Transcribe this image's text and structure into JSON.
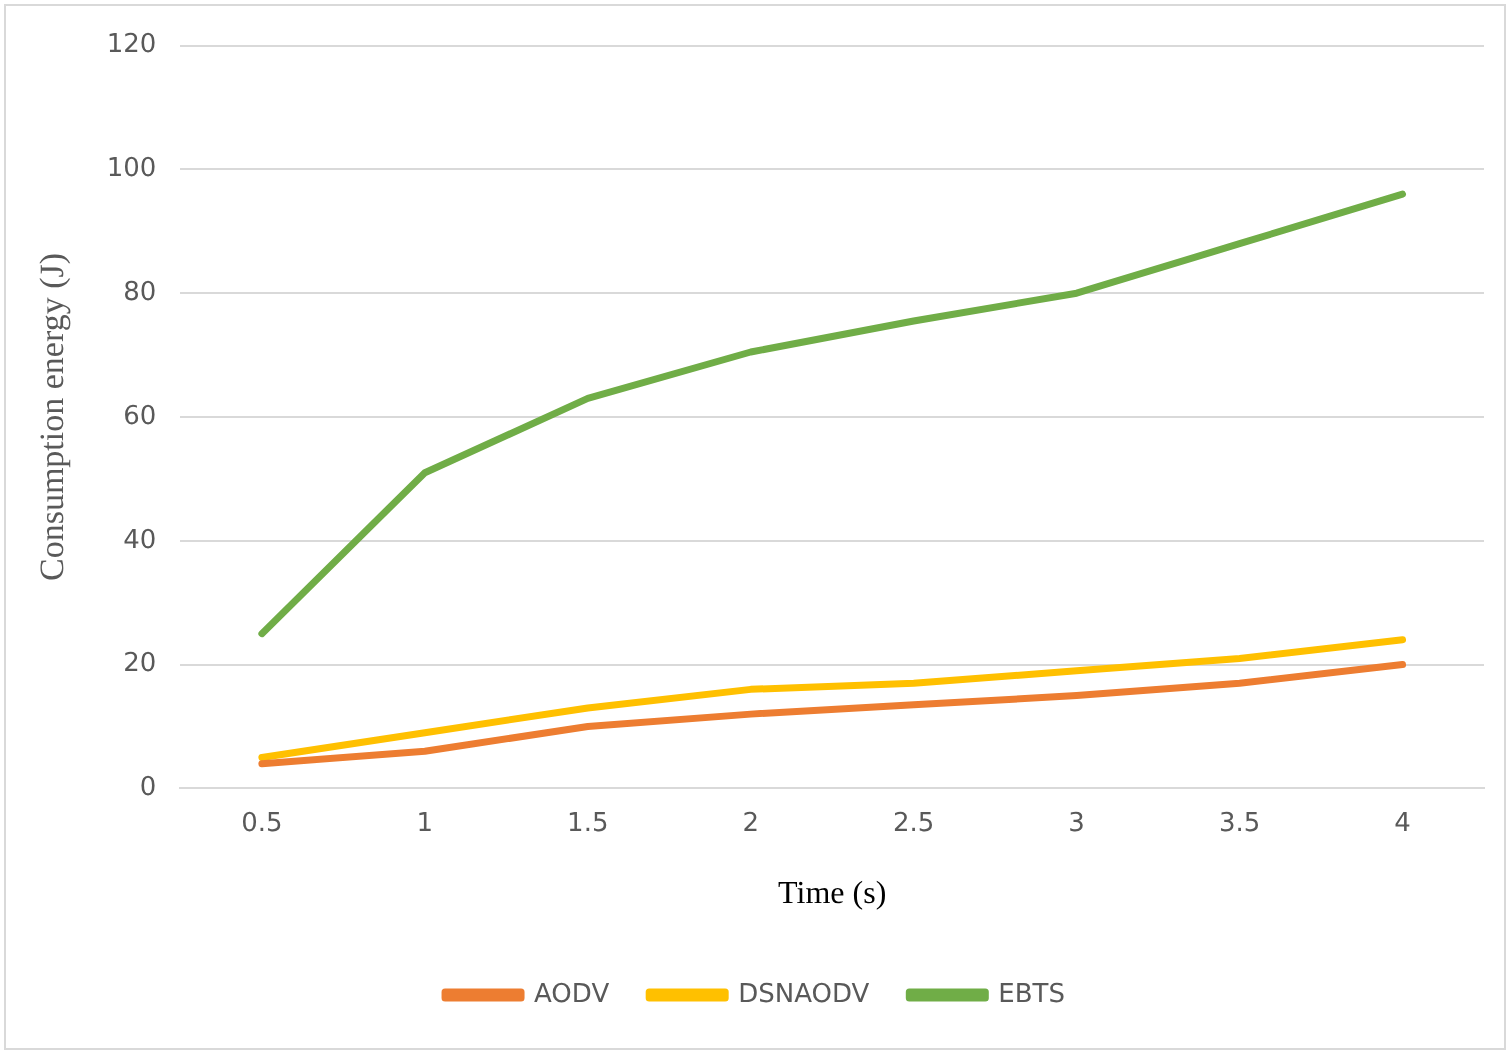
{
  "chart_data": {
    "type": "line",
    "xlabel": "Time (s)",
    "ylabel": "Consumption energy (J)",
    "categories": [
      "0.5",
      "1",
      "1.5",
      "2",
      "2.5",
      "3",
      "3.5",
      "4"
    ],
    "series": [
      {
        "name": "AODV",
        "color": "#ed7d31",
        "values": [
          4,
          6,
          10,
          12,
          13.5,
          15,
          17,
          20
        ]
      },
      {
        "name": "DSNAODV",
        "color": "#ffc000",
        "values": [
          5,
          9,
          13,
          16,
          17,
          19,
          21,
          24
        ]
      },
      {
        "name": "EBTS",
        "color": "#70ad47",
        "values": [
          25,
          51,
          63,
          70.5,
          75.5,
          80,
          88,
          96
        ]
      }
    ],
    "ylim": [
      0,
      120
    ],
    "yticks": [
      0,
      20,
      40,
      60,
      80,
      100,
      120
    ],
    "grid": "y",
    "legend": "bottom",
    "marker": "none",
    "line_style": "solid"
  }
}
